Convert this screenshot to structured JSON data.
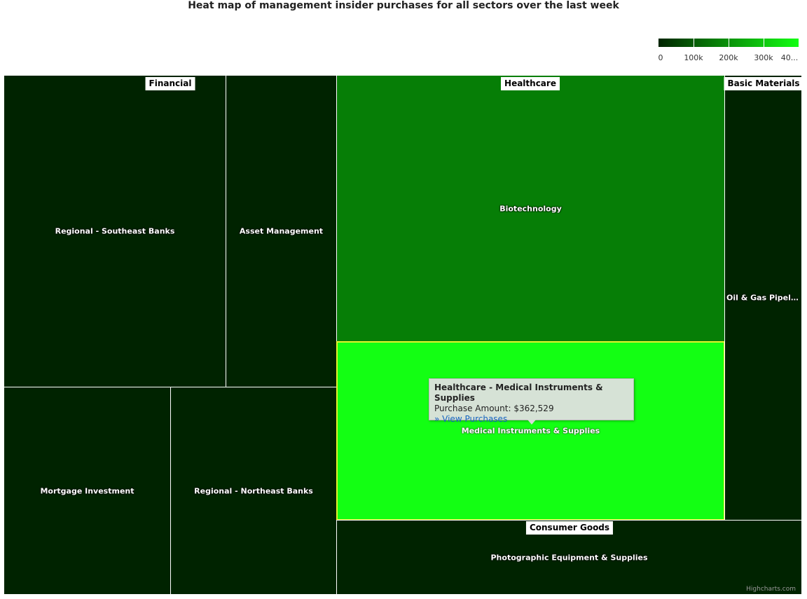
{
  "chart_data": {
    "type": "treemap",
    "title": "Heat map of management insider purchases for all sectors over the last week",
    "colorAxis": {
      "min": 0,
      "max": 400000,
      "minColor": "#002400",
      "maxColor": "#13ff13",
      "tick_labels": [
        "0",
        "100k",
        "200k",
        "300k",
        "40..."
      ]
    },
    "sectors": [
      "Financial",
      "Healthcare",
      "Basic Materials",
      "Consumer Goods"
    ],
    "nodes": [
      {
        "sector": "Financial",
        "industry": "Regional - Southeast Banks",
        "value": 0,
        "color": "#002300"
      },
      {
        "sector": "Financial",
        "industry": "Asset Management",
        "value": 0,
        "color": "#002300"
      },
      {
        "sector": "Financial",
        "industry": "Mortgage Investment",
        "value": 0,
        "color": "#002300"
      },
      {
        "sector": "Financial",
        "industry": "Regional - Northeast Banks",
        "value": 0,
        "color": "#002300"
      },
      {
        "sector": "Healthcare",
        "industry": "Biotechnology",
        "value": 130000,
        "color": "#067e06"
      },
      {
        "sector": "Healthcare",
        "industry": "Medical Instruments & Supplies",
        "value": 362529,
        "color": "#13ff13"
      },
      {
        "sector": "Basic Materials",
        "industry": "Oil & Gas Pipelin...",
        "value": 0,
        "color": "#002300"
      },
      {
        "sector": "Consumer Goods",
        "industry": "Photographic Equipment & Supplies",
        "value": 0,
        "color": "#002300"
      }
    ]
  },
  "tooltip": {
    "title": "Healthcare - Medical Instruments & Supplies",
    "amount_text": "Purchase Amount: $362,529",
    "link_text": "» View Purchases"
  },
  "credits": "Highcharts.com"
}
